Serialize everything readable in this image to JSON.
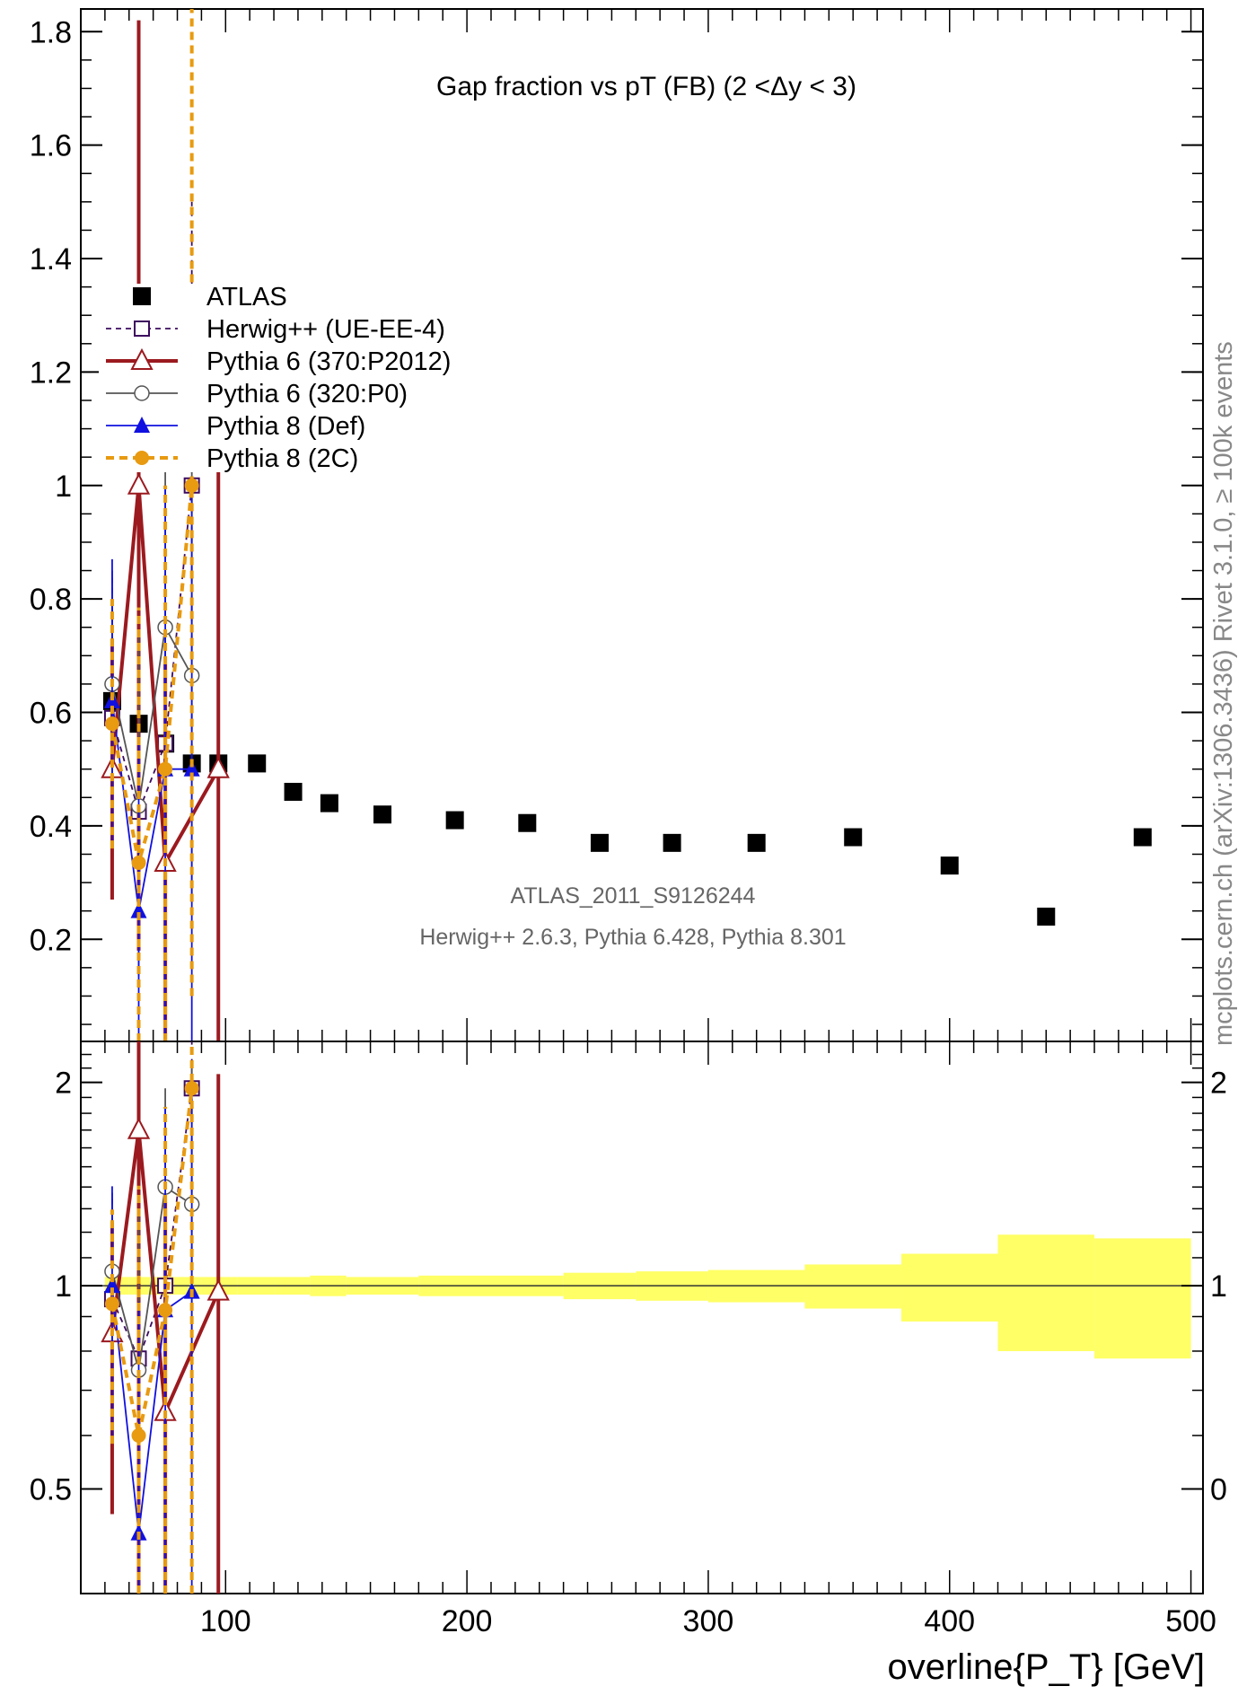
{
  "chart_data": [
    {
      "type": "scatter",
      "panel": "main",
      "title": "Gap fraction vs pT (FB) (2 <Δy < 3)",
      "xlim": [
        40,
        505
      ],
      "ylim": [
        0.02,
        1.84
      ],
      "yticks": [
        0.2,
        0.4,
        0.6,
        0.8,
        1,
        1.2,
        1.4,
        1.6,
        1.8
      ],
      "ytick_labels": [
        "0.2",
        "0.4",
        "0.6",
        "0.8",
        "1",
        "1.2",
        "1.4",
        "1.6",
        "1.8"
      ],
      "legend_position": "upper-left",
      "annotation_line1": "ATLAS_2011_S9126244",
      "annotation_line2": "Herwig++ 2.6.3, Pythia 6.428, Pythia 8.301",
      "side_label": "mcplots.cern.ch (arXiv:1306.3436)   Rivet 3.1.0, ≥ 100k events",
      "series": [
        {
          "name": "ATLAS",
          "color": "#000000",
          "marker": "filled-square",
          "x": [
            53,
            64,
            75,
            86,
            97,
            113,
            128,
            143,
            165,
            195,
            225,
            255,
            285,
            320,
            360,
            400,
            440,
            480
          ],
          "y": [
            0.62,
            0.58,
            0.545,
            0.51,
            0.51,
            0.51,
            0.46,
            0.44,
            0.42,
            0.41,
            0.405,
            0.37,
            0.37,
            0.37,
            0.38,
            0.33,
            0.24,
            0.38
          ]
        },
        {
          "name": "Herwig++ (UE-EE-4)",
          "color": "#3d0b5f",
          "marker": "open-square",
          "line": "dashed",
          "x": [
            53,
            64,
            75,
            86
          ],
          "y": [
            0.59,
            0.425,
            0.545,
            1.0
          ],
          "err": [
            0.25,
            0.25,
            0.3,
            0.5
          ]
        },
        {
          "name": "Pythia 6 (370:P2012)",
          "color": "#9b1a1f",
          "marker": "open-triangle",
          "line": "solid-thick",
          "x": [
            53,
            64,
            75,
            97
          ],
          "y": [
            0.5,
            1.0,
            0.335,
            0.5
          ],
          "err": [
            0.23,
            0.82,
            0.35,
            0.55
          ]
        },
        {
          "name": "Pythia 6 (320:P0)",
          "color": "#555555",
          "marker": "open-circle",
          "line": "solid-thin",
          "x": [
            53,
            64,
            75,
            86
          ],
          "y": [
            0.65,
            0.435,
            0.75,
            0.665
          ],
          "err": [
            0.2,
            0.3,
            0.3,
            0.4
          ]
        },
        {
          "name": "Pythia 8 (Def)",
          "color": "#1010e0",
          "marker": "filled-triangle",
          "line": "solid-thin",
          "x": [
            53,
            64,
            75,
            86
          ],
          "y": [
            0.62,
            0.25,
            0.5,
            0.5
          ],
          "err": [
            0.25,
            0.3,
            0.5,
            0.5
          ]
        },
        {
          "name": "Pythia 8 (2C)",
          "color": "#e89a10",
          "marker": "filled-circle",
          "line": "dashed-thick",
          "x": [
            53,
            64,
            75,
            86
          ],
          "y": [
            0.58,
            0.335,
            0.5,
            1.0
          ],
          "err": [
            0.22,
            0.45,
            0.5,
            0.9
          ]
        }
      ]
    },
    {
      "type": "scatter",
      "panel": "ratio",
      "xlabel": "overline{P_T} [GeV]",
      "xlim": [
        40,
        505
      ],
      "ylim": [
        0.35,
        2.3
      ],
      "xticks": [
        100,
        200,
        300,
        400,
        500
      ],
      "xtick_labels": [
        "100",
        "200",
        "300",
        "400",
        "500"
      ],
      "yticks": [
        0.5,
        1,
        2
      ],
      "ytick_labels": [
        "0.5",
        "1",
        "2"
      ],
      "right_ytick_labels": [
        "0",
        "1",
        "2"
      ],
      "band": {
        "color": "#ffff66",
        "bins": [
          [
            50,
            60,
            0.97,
            1.03
          ],
          [
            60,
            70,
            0.97,
            1.03
          ],
          [
            70,
            80,
            0.97,
            1.03
          ],
          [
            80,
            90,
            0.97,
            1.03
          ],
          [
            90,
            105,
            0.97,
            1.03
          ],
          [
            105,
            120,
            0.97,
            1.03
          ],
          [
            120,
            135,
            0.97,
            1.03
          ],
          [
            135,
            150,
            0.965,
            1.035
          ],
          [
            150,
            180,
            0.97,
            1.03
          ],
          [
            180,
            210,
            0.965,
            1.035
          ],
          [
            210,
            240,
            0.965,
            1.035
          ],
          [
            240,
            270,
            0.955,
            1.045
          ],
          [
            270,
            300,
            0.95,
            1.05
          ],
          [
            300,
            340,
            0.945,
            1.055
          ],
          [
            340,
            380,
            0.925,
            1.075
          ],
          [
            380,
            420,
            0.885,
            1.115
          ],
          [
            420,
            460,
            0.8,
            1.19
          ],
          [
            460,
            500,
            0.78,
            1.175
          ]
        ]
      },
      "series": [
        {
          "name": "Herwig++ (UE-EE-4)",
          "x": [
            53,
            64,
            75,
            86
          ],
          "y": [
            0.955,
            0.78,
            1.0,
            1.96
          ]
        },
        {
          "name": "Pythia 6 (370:P2012)",
          "x": [
            53,
            64,
            75,
            97
          ],
          "y": [
            0.85,
            1.7,
            0.65,
            0.98
          ]
        },
        {
          "name": "Pythia 6 (320:P0)",
          "x": [
            53,
            64,
            75,
            86
          ],
          "y": [
            1.05,
            0.75,
            1.4,
            1.32
          ]
        },
        {
          "name": "Pythia 8 (Def)",
          "x": [
            53,
            64,
            75,
            86
          ],
          "y": [
            1.0,
            0.43,
            0.92,
            0.98
          ]
        },
        {
          "name": "Pythia 8 (2C)",
          "x": [
            53,
            64,
            75,
            86
          ],
          "y": [
            0.94,
            0.6,
            0.92,
            1.96
          ]
        }
      ]
    }
  ],
  "legend": {
    "entries": [
      "ATLAS",
      "Herwig++ (UE-EE-4)",
      "Pythia 6 (370:P2012)",
      "Pythia 6 (320:P0)",
      "Pythia 8 (Def)",
      "Pythia 8 (2C)"
    ]
  }
}
